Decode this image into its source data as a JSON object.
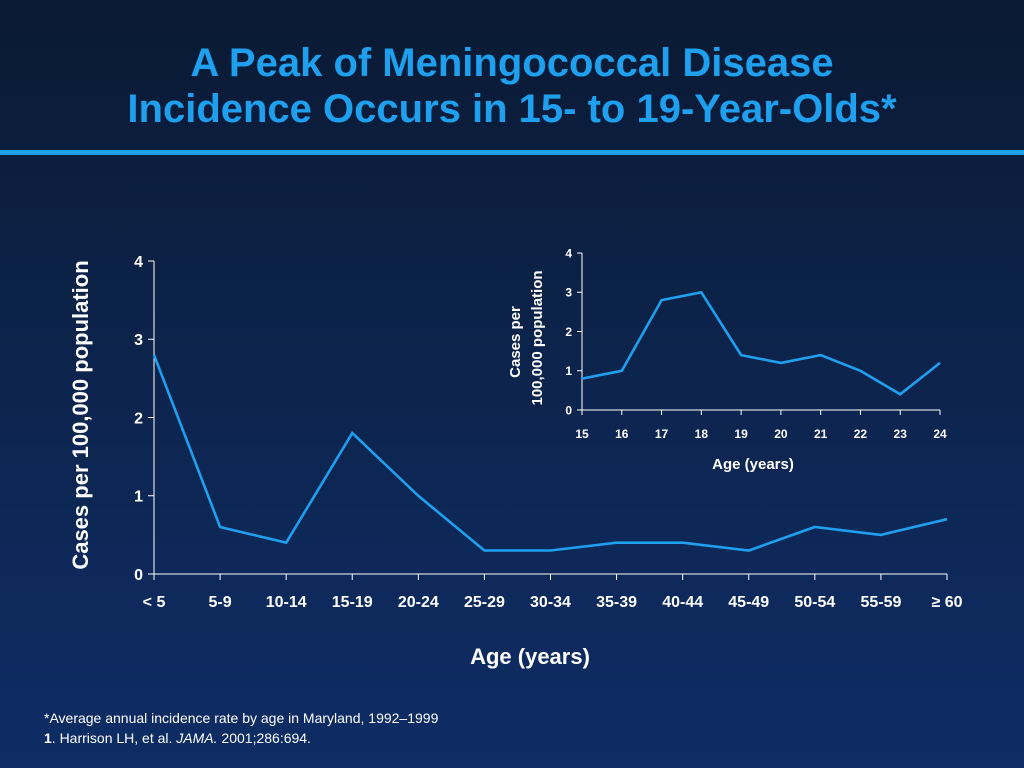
{
  "slide": {
    "title_line1": "A Peak of Meningococcal Disease",
    "title_line2": "Incidence Occurs in 15- to 19-Year-Olds*",
    "footnote_line1": "*Average annual incidence rate by age in Maryland, 1992–1999",
    "footnote_ref_number": "1",
    "footnote_ref_authors": ". Harrison LH, et al. ",
    "footnote_ref_journal": "JAMA.",
    "footnote_ref_citation": " 2001;286:694."
  },
  "colors": {
    "title": "#1fa0ef",
    "line": "#1fa0ef",
    "text": "#ffffff",
    "background_top": "#0a1a33",
    "background_bottom": "#0e2d66"
  },
  "chart_data": [
    {
      "type": "line",
      "title": "",
      "xlabel": "Age (years)",
      "ylabel": "Cases per 100,000 population",
      "categories": [
        "< 5",
        "5-9",
        "10-14",
        "15-19",
        "20-24",
        "25-29",
        "30-34",
        "35-39",
        "40-44",
        "45-49",
        "50-54",
        "55-59",
        "≥ 60"
      ],
      "values": [
        2.8,
        0.6,
        0.4,
        1.8,
        1.0,
        0.3,
        0.3,
        0.4,
        0.4,
        0.3,
        0.6,
        0.5,
        0.7
      ],
      "y_ticks": [
        0,
        1,
        2,
        3,
        4
      ],
      "ylim": [
        0,
        4
      ],
      "grid": false,
      "legend": "none"
    },
    {
      "type": "line",
      "title": "",
      "xlabel": "Age (years)",
      "ylabel_line1": "Cases per",
      "ylabel_line2": "100,000 population",
      "categories": [
        "15",
        "16",
        "17",
        "18",
        "19",
        "20",
        "21",
        "22",
        "23",
        "24"
      ],
      "values": [
        0.8,
        1.0,
        2.8,
        3.0,
        1.4,
        1.2,
        1.4,
        1.0,
        0.4,
        1.2
      ],
      "y_ticks": [
        0,
        1,
        2,
        3,
        4
      ],
      "ylim": [
        0,
        4
      ],
      "grid": false,
      "legend": "none"
    }
  ]
}
